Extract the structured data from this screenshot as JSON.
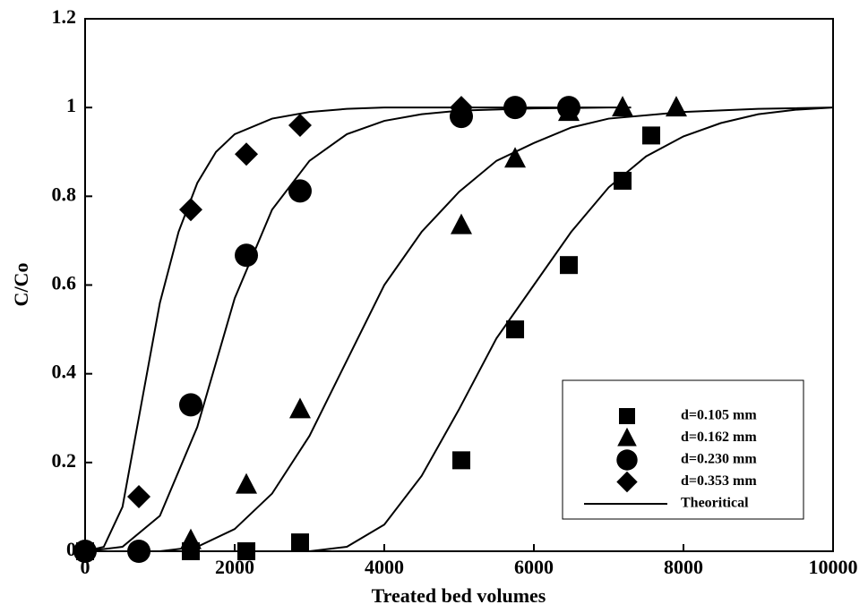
{
  "chart_data": {
    "type": "scatter",
    "x_label": "Treated bed volumes",
    "y_label": "C/Co",
    "xlim": [
      0,
      10000
    ],
    "xticks": [
      0,
      2000,
      4000,
      6000,
      8000,
      10000
    ],
    "ylim": [
      0,
      1.2
    ],
    "yticks": [
      0,
      0.2,
      0.4,
      0.6,
      0.8,
      1,
      1.2
    ],
    "legend": "lower-right",
    "series": [
      {
        "name": "d=0.105 mm",
        "marker": "square",
        "color": "#000000",
        "x": [
          0,
          1413,
          2156,
          2874,
          5030,
          5749,
          6467,
          7186,
          7569
        ],
        "values": [
          0,
          0,
          0,
          0.02,
          0.205,
          0.5,
          0.645,
          0.835,
          0.937
        ]
      },
      {
        "name": "d=0.162 mm",
        "marker": "triangle",
        "color": "#000000",
        "x": [
          1413,
          2156,
          2874,
          5030,
          5749,
          6467,
          7186,
          7904
        ],
        "values": [
          0.025,
          0.15,
          0.32,
          0.735,
          0.885,
          0.99,
          1,
          1
        ]
      },
      {
        "name": "d=0.230 mm",
        "marker": "circle",
        "color": "#000000",
        "x": [
          0,
          719,
          1413,
          2156,
          2874,
          5030,
          5749,
          6467
        ],
        "values": [
          0,
          0,
          0.33,
          0.667,
          0.812,
          0.98,
          1,
          1
        ]
      },
      {
        "name": "d=0.353 mm",
        "marker": "diamond",
        "color": "#000000",
        "x": [
          719,
          1413,
          2156,
          2874,
          5030
        ],
        "values": [
          0.123,
          0.77,
          0.895,
          0.96,
          1
        ]
      },
      {
        "name": "Theoritical",
        "marker": "line",
        "color": "#000000",
        "x": [
          0,
          250,
          500,
          750,
          1000,
          1250,
          1500,
          1750,
          2000,
          2500,
          3000,
          3500,
          4000,
          5000,
          6000,
          7000,
          7300,
          null,
          0,
          500,
          1000,
          1500,
          2000,
          2500,
          3000,
          3500,
          4000,
          4500,
          5000,
          6000,
          7000,
          null,
          1000,
          1500,
          2000,
          2500,
          3000,
          3500,
          4000,
          4500,
          5000,
          5500,
          6000,
          6500,
          7000,
          8000,
          9000,
          10000,
          null,
          3000,
          3500,
          4000,
          4500,
          5000,
          5500,
          6000,
          6500,
          7000,
          7500,
          8000,
          8500,
          9000,
          9500,
          10000
        ],
        "values": [
          0,
          0.01,
          0.1,
          0.33,
          0.56,
          0.72,
          0.83,
          0.9,
          0.94,
          0.975,
          0.99,
          0.997,
          1,
          1,
          1,
          1,
          1,
          null,
          0,
          0.01,
          0.08,
          0.28,
          0.57,
          0.77,
          0.88,
          0.94,
          0.97,
          0.985,
          0.993,
          0.998,
          1,
          null,
          0,
          0.01,
          0.05,
          0.13,
          0.26,
          0.43,
          0.6,
          0.72,
          0.81,
          0.88,
          0.92,
          0.955,
          0.975,
          0.99,
          0.997,
          1,
          null,
          0,
          0.01,
          0.06,
          0.17,
          0.32,
          0.48,
          0.6,
          0.72,
          0.82,
          0.89,
          0.935,
          0.965,
          0.985,
          0.995,
          1
        ]
      }
    ]
  }
}
